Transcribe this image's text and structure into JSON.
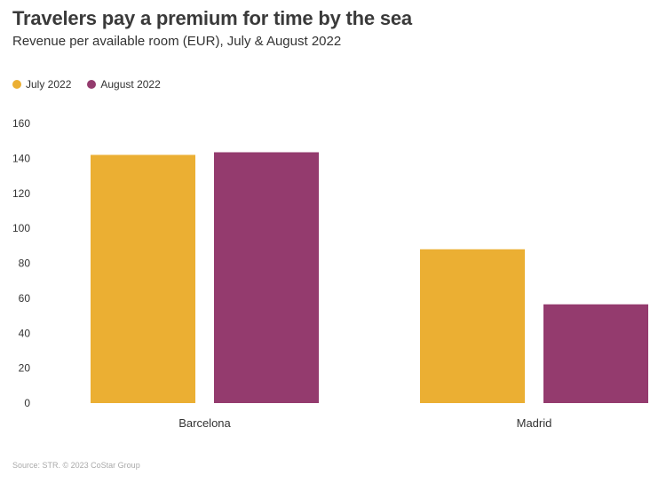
{
  "chart_data": {
    "type": "bar",
    "title": "Travelers pay a premium for time by the sea",
    "subtitle": "Revenue per available room (EUR), July & August 2022",
    "categories": [
      "Barcelona",
      "Madrid"
    ],
    "series": [
      {
        "name": "July 2022",
        "color": "#EBAF33",
        "values": [
          142,
          88
        ]
      },
      {
        "name": "August 2022",
        "color": "#943B6E",
        "values": [
          143.5,
          56.5
        ]
      }
    ],
    "ylim": [
      0,
      160
    ],
    "yticks": [
      0,
      20,
      40,
      60,
      80,
      100,
      120,
      140,
      160
    ],
    "grid": false,
    "legend_position": "top-left",
    "source": "Source: STR. © 2023 CoStar Group"
  }
}
